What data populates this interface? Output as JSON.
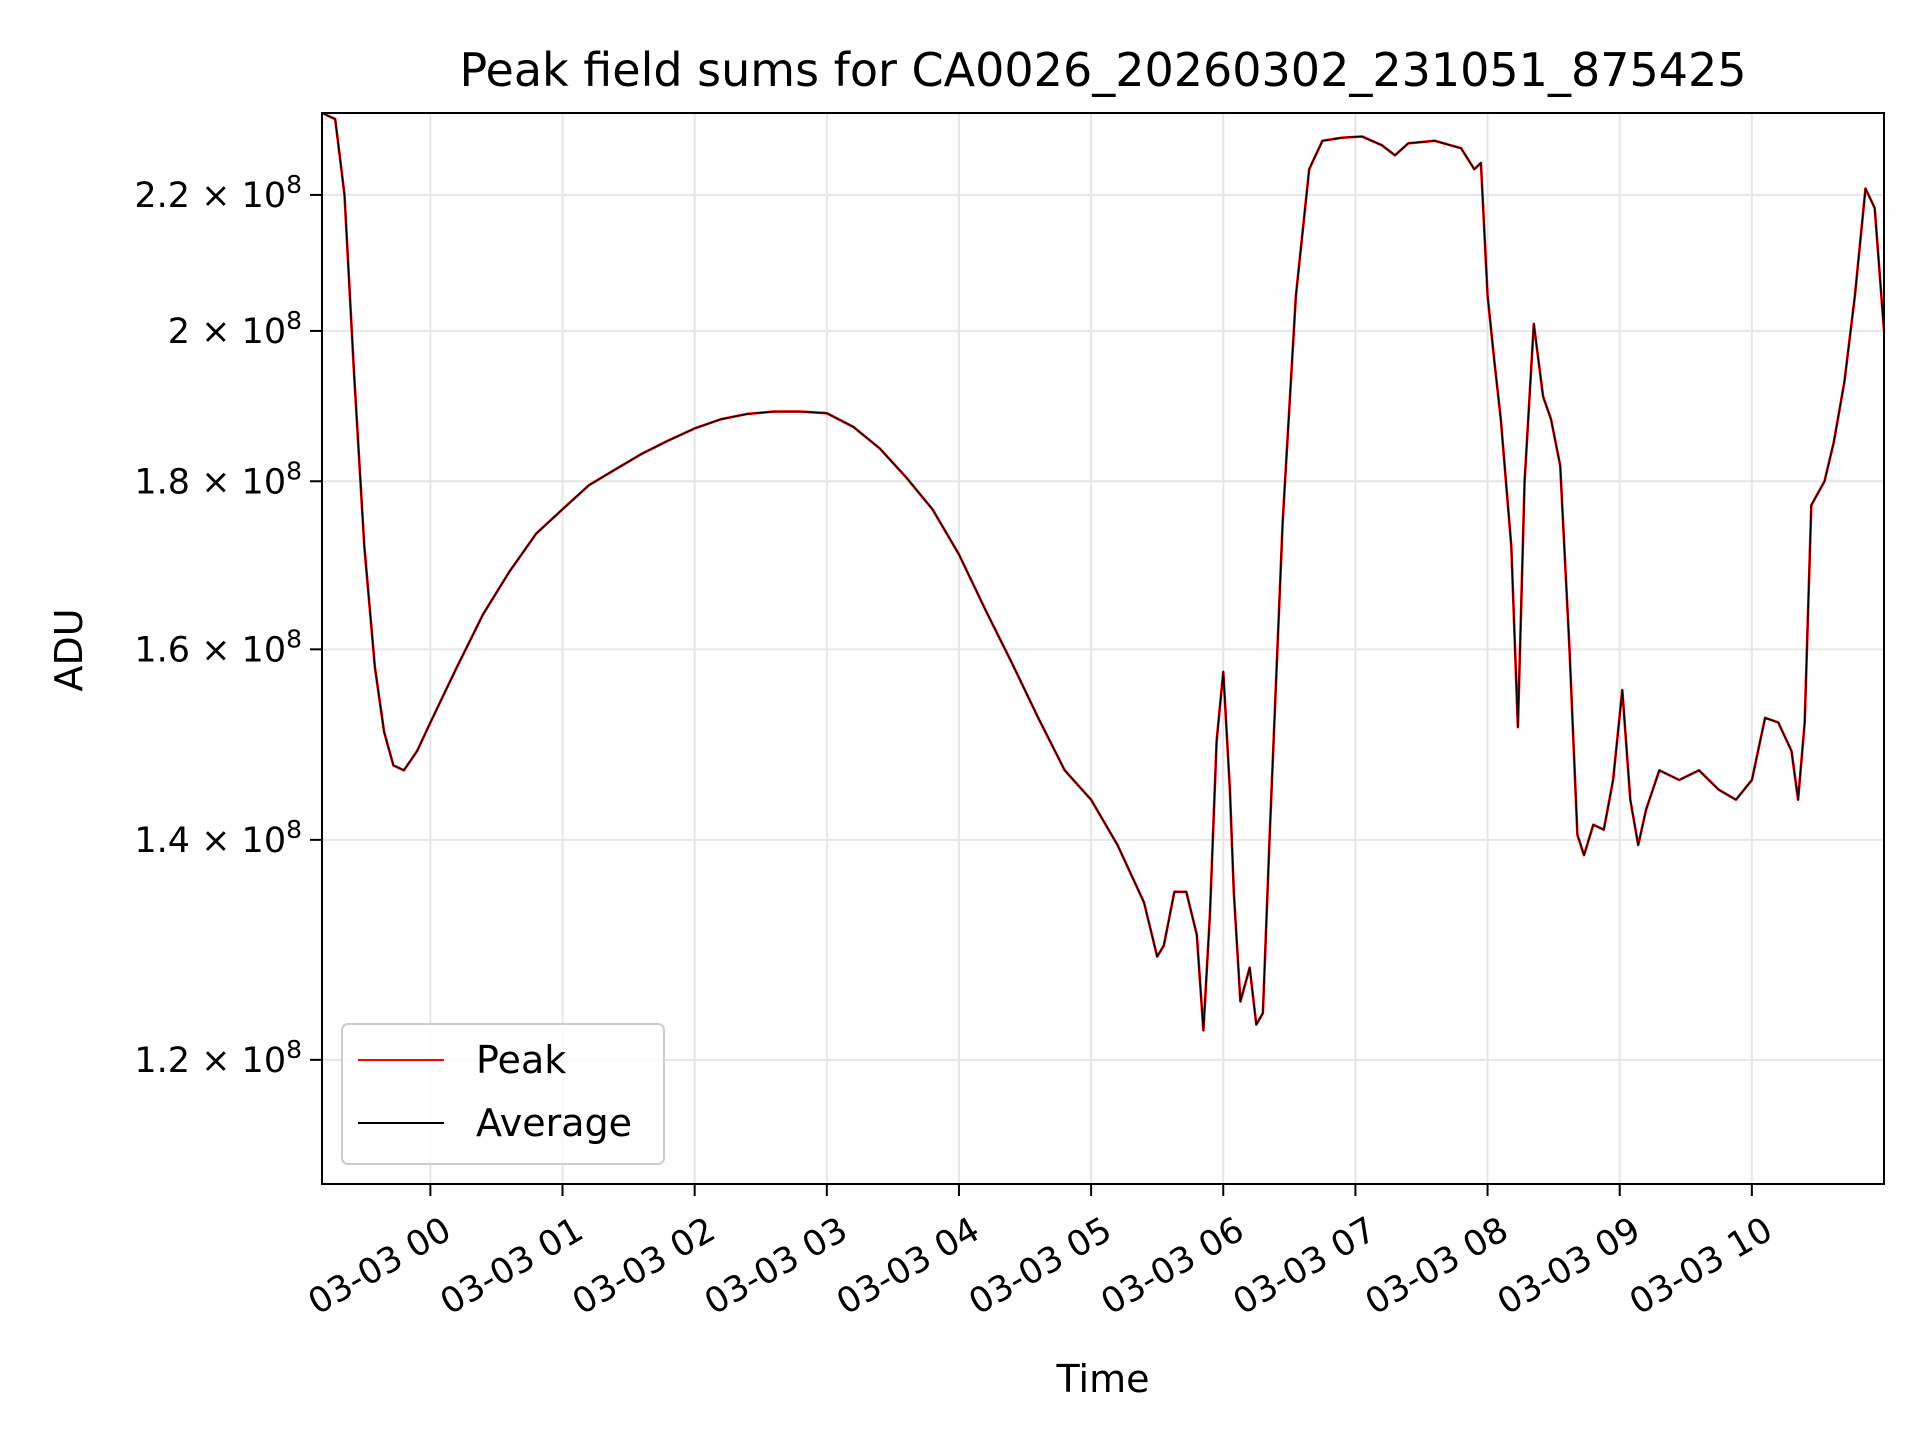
{
  "chart_data": {
    "type": "line",
    "title": "Peak field sums for CA0026_20260302_231051_875425",
    "xlabel": "Time",
    "ylabel": "ADU",
    "x_unit": "hours since 03-03 00:00",
    "xlim": [
      -0.82,
      11.0
    ],
    "ylim": [
      110000000.0,
      233000000.0
    ],
    "y_scale": "log",
    "grid": true,
    "legend_position": "lower-left",
    "x_ticks": [
      {
        "value": 0,
        "label": "03-03 00"
      },
      {
        "value": 1,
        "label": "03-03 01"
      },
      {
        "value": 2,
        "label": "03-03 02"
      },
      {
        "value": 3,
        "label": "03-03 03"
      },
      {
        "value": 4,
        "label": "03-03 04"
      },
      {
        "value": 5,
        "label": "03-03 05"
      },
      {
        "value": 6,
        "label": "03-03 06"
      },
      {
        "value": 7,
        "label": "03-03 07"
      },
      {
        "value": 8,
        "label": "03-03 08"
      },
      {
        "value": 9,
        "label": "03-03 09"
      },
      {
        "value": 10,
        "label": "03-03 10"
      }
    ],
    "y_ticks": [
      {
        "value": 120000000.0,
        "mantissa": "1.2",
        "exponent": "8"
      },
      {
        "value": 140000000.0,
        "mantissa": "1.4",
        "exponent": "8"
      },
      {
        "value": 160000000.0,
        "mantissa": "1.6",
        "exponent": "8"
      },
      {
        "value": 180000000.0,
        "mantissa": "1.8",
        "exponent": "8"
      },
      {
        "value": 200000000.0,
        "mantissa": "2",
        "exponent": "8"
      },
      {
        "value": 220000000.0,
        "mantissa": "2.2",
        "exponent": "8"
      }
    ],
    "series": [
      {
        "name": "Average",
        "color": "#000000",
        "points": [
          [
            -0.82,
            233000000.0
          ],
          [
            -0.72,
            232000000.0
          ],
          [
            -0.65,
            220000000.0
          ],
          [
            -0.58,
            195000000.0
          ],
          [
            -0.5,
            172000000.0
          ],
          [
            -0.42,
            158000000.0
          ],
          [
            -0.35,
            151000000.0
          ],
          [
            -0.28,
            147500000.0
          ],
          [
            -0.2,
            147000000.0
          ],
          [
            -0.1,
            149000000.0
          ],
          [
            0.0,
            152000000.0
          ],
          [
            0.2,
            158000000.0
          ],
          [
            0.4,
            164000000.0
          ],
          [
            0.6,
            169000000.0
          ],
          [
            0.8,
            173500000.0
          ],
          [
            1.0,
            176500000.0
          ],
          [
            1.2,
            179500000.0
          ],
          [
            1.4,
            181500000.0
          ],
          [
            1.6,
            183500000.0
          ],
          [
            1.8,
            185200000.0
          ],
          [
            2.0,
            186800000.0
          ],
          [
            2.2,
            188000000.0
          ],
          [
            2.4,
            188700000.0
          ],
          [
            2.6,
            189000000.0
          ],
          [
            2.8,
            189000000.0
          ],
          [
            3.0,
            188800000.0
          ],
          [
            3.2,
            187000000.0
          ],
          [
            3.4,
            184200000.0
          ],
          [
            3.6,
            180500000.0
          ],
          [
            3.8,
            176500000.0
          ],
          [
            4.0,
            171000000.0
          ],
          [
            4.2,
            164500000.0
          ],
          [
            4.4,
            158500000.0
          ],
          [
            4.6,
            152500000.0
          ],
          [
            4.8,
            147000000.0
          ],
          [
            5.0,
            144000000.0
          ],
          [
            5.2,
            139500000.0
          ],
          [
            5.4,
            134000000.0
          ],
          [
            5.5,
            129000000.0
          ],
          [
            5.55,
            130000000.0
          ],
          [
            5.63,
            135000000.0
          ],
          [
            5.72,
            135000000.0
          ],
          [
            5.8,
            131000000.0
          ],
          [
            5.85,
            122500000.0
          ],
          [
            5.9,
            133000000.0
          ],
          [
            5.95,
            150000000.0
          ],
          [
            6.0,
            157500000.0
          ],
          [
            6.05,
            145000000.0
          ],
          [
            6.08,
            135000000.0
          ],
          [
            6.13,
            125000000.0
          ],
          [
            6.2,
            128000000.0
          ],
          [
            6.25,
            123000000.0
          ],
          [
            6.3,
            124000000.0
          ],
          [
            6.35,
            140000000.0
          ],
          [
            6.45,
            175000000.0
          ],
          [
            6.55,
            205000000.0
          ],
          [
            6.65,
            224000000.0
          ],
          [
            6.75,
            228500000.0
          ],
          [
            6.9,
            229000000.0
          ],
          [
            7.05,
            229200000.0
          ],
          [
            7.2,
            227800000.0
          ],
          [
            7.3,
            226200000.0
          ],
          [
            7.4,
            228100000.0
          ],
          [
            7.6,
            228500000.0
          ],
          [
            7.8,
            227300000.0
          ],
          [
            7.9,
            224000000.0
          ],
          [
            7.95,
            225000000.0
          ],
          [
            8.0,
            205000000.0
          ],
          [
            8.05,
            196000000.0
          ],
          [
            8.1,
            188000000.0
          ],
          [
            8.18,
            172000000.0
          ],
          [
            8.23,
            151500000.0
          ],
          [
            8.28,
            180000000.0
          ],
          [
            8.35,
            201000000.0
          ],
          [
            8.42,
            191000000.0
          ],
          [
            8.48,
            188000000.0
          ],
          [
            8.55,
            182000000.0
          ],
          [
            8.62,
            160000000.0
          ],
          [
            8.68,
            140500000.0
          ],
          [
            8.73,
            138500000.0
          ],
          [
            8.8,
            141500000.0
          ],
          [
            8.88,
            141000000.0
          ],
          [
            8.95,
            146000000.0
          ],
          [
            9.02,
            155500000.0
          ],
          [
            9.08,
            144000000.0
          ],
          [
            9.14,
            139500000.0
          ],
          [
            9.2,
            143000000.0
          ],
          [
            9.3,
            147000000.0
          ],
          [
            9.45,
            146000000.0
          ],
          [
            9.6,
            147000000.0
          ],
          [
            9.75,
            145000000.0
          ],
          [
            9.88,
            144000000.0
          ],
          [
            10.0,
            146000000.0
          ],
          [
            10.1,
            152500000.0
          ],
          [
            10.2,
            152000000.0
          ],
          [
            10.3,
            149000000.0
          ],
          [
            10.35,
            144000000.0
          ],
          [
            10.4,
            152000000.0
          ],
          [
            10.45,
            177000000.0
          ],
          [
            10.55,
            180000000.0
          ],
          [
            10.62,
            185000000.0
          ],
          [
            10.7,
            193000000.0
          ],
          [
            10.78,
            205000000.0
          ],
          [
            10.86,
            221000000.0
          ],
          [
            10.93,
            218000000.0
          ],
          [
            11.0,
            200000000.0
          ]
        ]
      },
      {
        "name": "Peak",
        "color": "#ff0000",
        "points": []
      }
    ]
  },
  "legend": {
    "items": [
      {
        "label": "Peak",
        "color": "#ff0000"
      },
      {
        "label": "Average",
        "color": "#000000"
      }
    ]
  }
}
